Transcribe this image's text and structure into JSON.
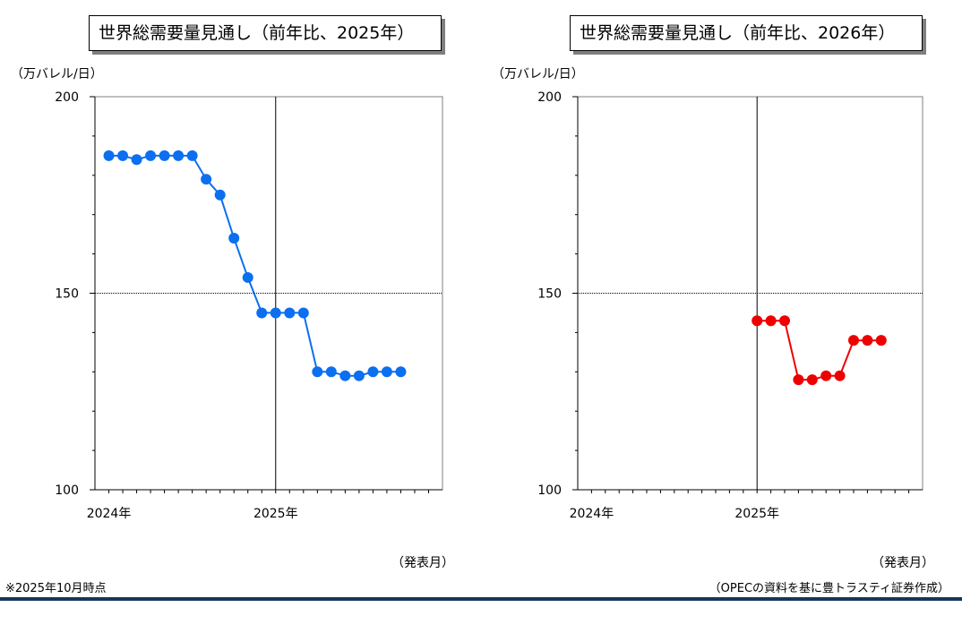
{
  "chart_data": [
    {
      "type": "line",
      "title": "世界総需要量見通し（前年比、2025年）",
      "ylabel": "（万バレル/日）",
      "xlabel": "（発表月）",
      "ylim": [
        100,
        200
      ],
      "yticks": [
        100,
        150,
        200
      ],
      "xlim": [
        "2023-12",
        "2026-01"
      ],
      "xticks": [
        {
          "label": "2024年",
          "x": "2024-01"
        },
        {
          "label": "2025年",
          "x": "2025-01"
        }
      ],
      "grid": true,
      "color": "#0b6ff0",
      "series": [
        {
          "x": [
            "2024-01",
            "2024-02",
            "2024-03",
            "2024-04",
            "2024-05",
            "2024-06",
            "2024-07",
            "2024-08",
            "2024-09",
            "2024-10",
            "2024-11",
            "2024-12",
            "2025-01",
            "2025-02",
            "2025-03",
            "2025-04",
            "2025-05",
            "2025-06",
            "2025-07",
            "2025-08",
            "2025-09",
            "2025-10"
          ],
          "values": [
            185,
            185,
            184,
            185,
            185,
            185,
            185,
            179,
            175,
            164,
            154,
            145,
            145,
            145,
            145,
            130,
            130,
            129,
            129,
            130,
            130,
            130
          ]
        }
      ]
    },
    {
      "type": "line",
      "title": "世界総需要量見通し（前年比、2026年）",
      "ylabel": "（万バレル/日）",
      "xlabel": "（発表月）",
      "ylim": [
        100,
        200
      ],
      "yticks": [
        100,
        150,
        200
      ],
      "xlim": [
        "2023-12",
        "2026-01"
      ],
      "xticks": [
        {
          "label": "2024年",
          "x": "2024-01"
        },
        {
          "label": "2025年",
          "x": "2025-01"
        }
      ],
      "grid": true,
      "color": "#ef0000",
      "series": [
        {
          "x": [
            "2025-01",
            "2025-02",
            "2025-03",
            "2025-04",
            "2025-05",
            "2025-06",
            "2025-07",
            "2025-08",
            "2025-09",
            "2025-10"
          ],
          "values": [
            143,
            143,
            143,
            128,
            128,
            129,
            129,
            138,
            138,
            138
          ]
        }
      ]
    }
  ],
  "footer": {
    "note": "※2025年10月時点",
    "source": "（OPECの資料を基に豊トラスティ証券作成）"
  }
}
